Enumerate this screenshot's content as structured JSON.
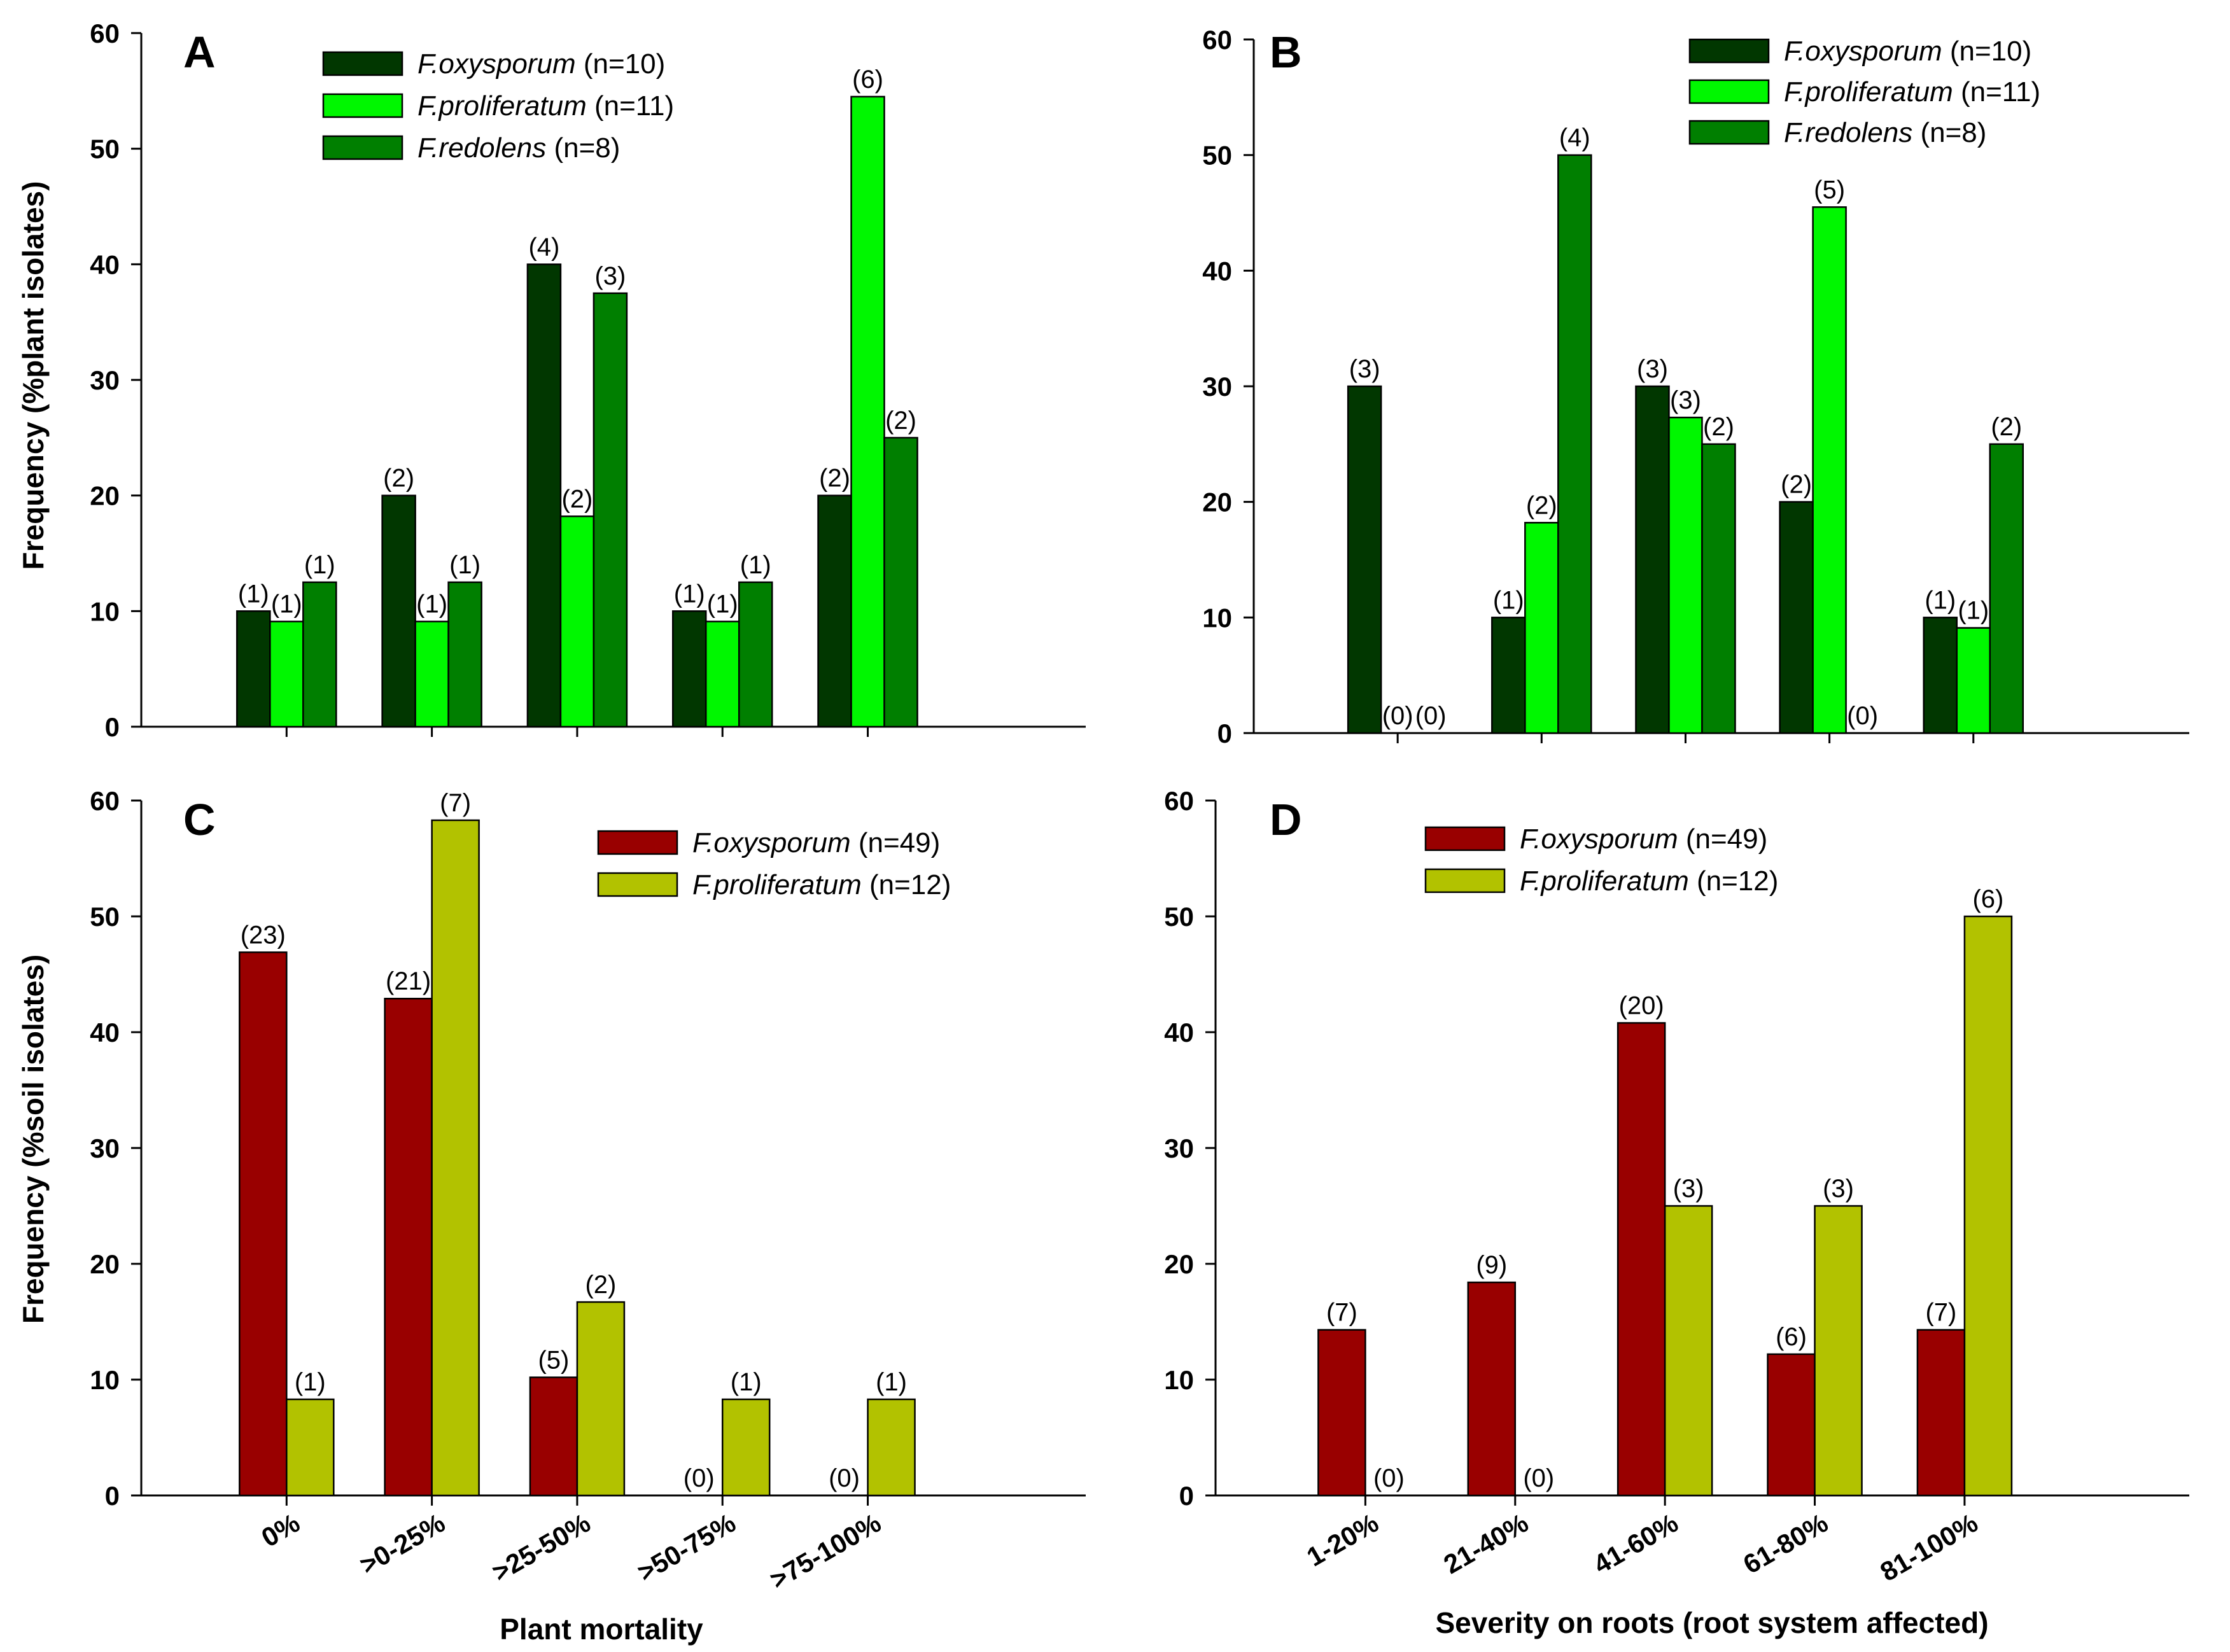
{
  "colors": {
    "dark_green": "#013700",
    "bright_green": "#00F700",
    "mid_green": "#007F00",
    "dark_red": "#990000",
    "olive": "#B2C200"
  },
  "axis_titles": {
    "y_top": "Frequency (%plant isolates)",
    "y_bottom": "Frequency (%soil isolates)",
    "x_left": "Plant mortality",
    "x_right": "Severity on roots (root system affected)"
  },
  "chart_data": [
    {
      "panel": "A",
      "type": "bar",
      "ylim": [
        0,
        60
      ],
      "yticks": [
        "0",
        "10",
        "20",
        "30",
        "40",
        "50",
        "60"
      ],
      "categories": [
        "0%",
        ">0-25%",
        ">25-50%",
        ">50-75%",
        ">75-100%"
      ],
      "show_category_labels": false,
      "legend_position": "top-center",
      "series": [
        {
          "name": "F.oxysporum",
          "n": "(n=10)",
          "color": "#013700",
          "values": [
            10,
            20,
            40,
            10,
            20
          ],
          "labels": [
            "(1)",
            "(2)",
            "(4)",
            "(1)",
            "(2)"
          ]
        },
        {
          "name": "F.proliferatum",
          "n": "(n=11)",
          "color": "#00F700",
          "values": [
            9.1,
            9.1,
            18.2,
            9.1,
            54.5
          ],
          "labels": [
            "(1)",
            "(1)",
            "(2)",
            "(1)",
            "(6)"
          ]
        },
        {
          "name": "F.redolens",
          "n": "(n=8)",
          "color": "#007F00",
          "values": [
            12.5,
            12.5,
            37.5,
            12.5,
            25
          ],
          "labels": [
            "(1)",
            "(1)",
            "(3)",
            "(1)",
            "(2)"
          ]
        }
      ]
    },
    {
      "panel": "B",
      "type": "bar",
      "ylim": [
        0,
        60
      ],
      "yticks": [
        "0",
        "10",
        "20",
        "30",
        "40",
        "50",
        "60"
      ],
      "categories": [
        "1-20%",
        "21-40%",
        "41-60%",
        "61-80%",
        "81-100%"
      ],
      "show_category_labels": false,
      "legend_position": "top-right",
      "series": [
        {
          "name": "F.oxysporum",
          "n": "(n=10)",
          "color": "#013700",
          "values": [
            30,
            10,
            30,
            20,
            10
          ],
          "labels": [
            "(3)",
            "(1)",
            "(3)",
            "(2)",
            "(1)"
          ]
        },
        {
          "name": "F.proliferatum",
          "n": "(n=11)",
          "color": "#00F700",
          "values": [
            0,
            18.2,
            27.3,
            45.5,
            9.1
          ],
          "labels": [
            "(0)",
            "(2)",
            "(3)",
            "(5)",
            "(1)"
          ]
        },
        {
          "name": "F.redolens",
          "n": "(n=8)",
          "color": "#007F00",
          "values": [
            0,
            50,
            25,
            0,
            25
          ],
          "labels": [
            "(0)",
            "(4)",
            "(2)",
            "(0)",
            "(2)"
          ]
        }
      ]
    },
    {
      "panel": "C",
      "type": "bar",
      "ylim": [
        0,
        60
      ],
      "yticks": [
        "0",
        "10",
        "20",
        "30",
        "40",
        "50",
        "60"
      ],
      "categories": [
        "0%",
        ">0-25%",
        ">25-50%",
        ">50-75%",
        ">75-100%"
      ],
      "show_category_labels": true,
      "legend_position": "top-right",
      "series": [
        {
          "name": "F.oxysporum",
          "n": "(n=49)",
          "color": "#990000",
          "values": [
            46.9,
            42.9,
            10.2,
            0,
            0
          ],
          "labels": [
            "(23)",
            "(21)",
            "(5)",
            "(0)",
            "(0)"
          ]
        },
        {
          "name": "F.proliferatum",
          "n": "(n=12)",
          "color": "#B2C200",
          "values": [
            8.3,
            58.3,
            16.7,
            8.3,
            8.3
          ],
          "labels": [
            "(1)",
            "(7)",
            "(2)",
            "(1)",
            "(1)"
          ]
        }
      ]
    },
    {
      "panel": "D",
      "type": "bar",
      "ylim": [
        0,
        60
      ],
      "yticks": [
        "0",
        "10",
        "20",
        "30",
        "40",
        "50",
        "60"
      ],
      "categories": [
        "1-20%",
        "21-40%",
        "41-60%",
        "61-80%",
        "81-100%"
      ],
      "show_category_labels": true,
      "legend_position": "top-left",
      "series": [
        {
          "name": "F.oxysporum",
          "n": "(n=49)",
          "color": "#990000",
          "values": [
            14.3,
            18.4,
            40.8,
            12.2,
            14.3
          ],
          "labels": [
            "(7)",
            "(9)",
            "(20)",
            "(6)",
            "(7)"
          ]
        },
        {
          "name": "F.proliferatum",
          "n": "(n=12)",
          "color": "#B2C200",
          "values": [
            0,
            0,
            25,
            25,
            50
          ],
          "labels": [
            "(0)",
            "(0)",
            "(3)",
            "(3)",
            "(6)"
          ]
        }
      ]
    }
  ]
}
